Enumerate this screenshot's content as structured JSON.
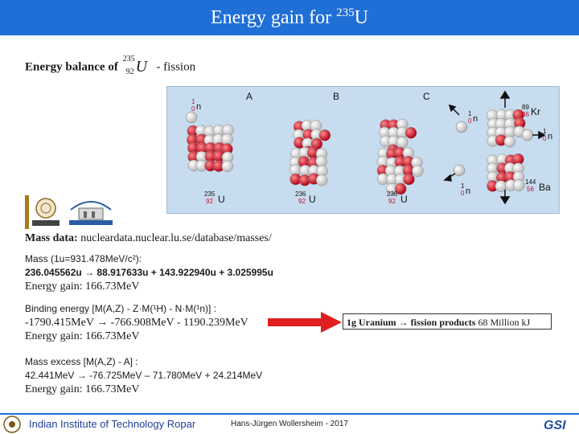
{
  "title": {
    "main": "Energy gain for ",
    "sup": "235",
    "elem": "U"
  },
  "balance": {
    "bold": "Energy balance of",
    "A": "235",
    "Z": "92",
    "sym": "U",
    "rest": "- fission"
  },
  "panel": {
    "labels": [
      "A",
      "B",
      "C"
    ],
    "u235": {
      "A": "235",
      "Z": "92",
      "sym": "U"
    },
    "u236a": {
      "A": "236",
      "Z": "92",
      "sym": "U"
    },
    "u236b": {
      "A": "236",
      "Z": "92",
      "sym": "U"
    },
    "n_in": {
      "A": "1",
      "Z": "0",
      "sym": "n"
    },
    "n_out1": {
      "A": "1",
      "Z": "0",
      "sym": "n"
    },
    "n_out2": {
      "A": "1",
      "Z": "0",
      "sym": "n"
    },
    "n_out3": {
      "A": "1",
      "Z": "0",
      "sym": "n"
    },
    "kr": {
      "A": "89",
      "Z": "36",
      "sym": "Kr"
    },
    "ba": {
      "A": "144",
      "Z": "56",
      "sym": "Ba"
    }
  },
  "mass_data": {
    "label": "Mass data:",
    "url": "nucleardata.nuclear.lu.se/database/masses/"
  },
  "block1": {
    "l1": "Mass (1u=931.478MeV/c²):",
    "l2": "236.045562u → 88.917633u + 143.922940u + 3.025995u",
    "l3": "Energy gain: 166.73MeV"
  },
  "block2": {
    "l1": "Binding energy [M(A,Z) - Z·M(¹H) - N·M(¹n)] :",
    "l2": "-1790.415MeV → -766.908MeV - 1190.239MeV",
    "l3": "Energy gain: 166.73MeV"
  },
  "block3": {
    "l1": "Mass excess [M(A,Z) - A] :",
    "l2": "42.441MeV → -76.725MeV – 71.780MeV + 24.214MeV",
    "l3": "Energy gain: 166.73MeV"
  },
  "box": {
    "bold": "1g Uranium → fission products",
    "rest": " 68 Million kJ"
  },
  "footer": {
    "institute": "Indian Institute of Technology Ropar",
    "author": "Hans-Jürgen Wollersheim - 2017"
  },
  "colors": {
    "header": "#1f6fd6",
    "panel": "#c7dcef",
    "proton": "#c8102e",
    "neutron": "#e6e6e6",
    "arrow": "#e02020"
  }
}
